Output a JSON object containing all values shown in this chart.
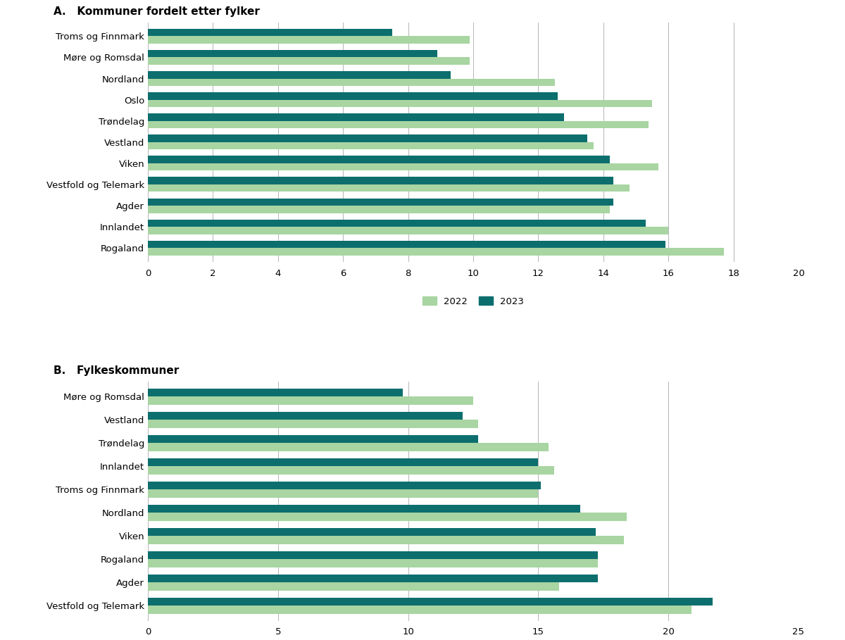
{
  "chart_a": {
    "title": "A.   Kommuner fordelt etter fylker",
    "categories": [
      "Rogaland",
      "Innlandet",
      "Agder",
      "Vestfold og Telemark",
      "Viken",
      "Vestland",
      "Trøndelag",
      "Oslo",
      "Nordland",
      "Møre og Romsdal",
      "Troms og Finnmark"
    ],
    "values_2022": [
      17.7,
      16.0,
      14.2,
      14.8,
      15.7,
      13.7,
      15.4,
      15.5,
      12.5,
      9.9,
      9.9
    ],
    "values_2023": [
      15.9,
      15.3,
      14.3,
      14.3,
      14.2,
      13.5,
      12.8,
      12.6,
      9.3,
      8.9,
      7.5
    ],
    "xlim": [
      0,
      20
    ],
    "xticks": [
      0,
      2,
      4,
      6,
      8,
      10,
      12,
      14,
      16,
      18,
      20
    ]
  },
  "chart_b": {
    "title": "B.   Fylkeskommuner",
    "categories": [
      "Vestfold og Telemark",
      "Agder",
      "Rogaland",
      "Viken",
      "Nordland",
      "Troms og Finnmark",
      "Innlandet",
      "Trøndelag",
      "Vestland",
      "Møre og Romsdal"
    ],
    "values_2022": [
      20.9,
      15.8,
      17.3,
      18.3,
      18.4,
      15.0,
      15.6,
      15.4,
      12.7,
      12.5
    ],
    "values_2023": [
      21.7,
      17.3,
      17.3,
      17.2,
      16.6,
      15.1,
      15.0,
      12.7,
      12.1,
      9.8
    ],
    "xlim": [
      0,
      25
    ],
    "xticks": [
      0,
      5,
      10,
      15,
      20,
      25
    ]
  },
  "color_2022": "#a8d5a2",
  "color_2023": "#0d6e6e",
  "bar_height": 0.35,
  "background_color": "#ffffff",
  "grid_color": "#aaaaaa",
  "legend_labels": [
    "2022",
    "2023"
  ],
  "title_fontsize": 11,
  "tick_fontsize": 9.5
}
